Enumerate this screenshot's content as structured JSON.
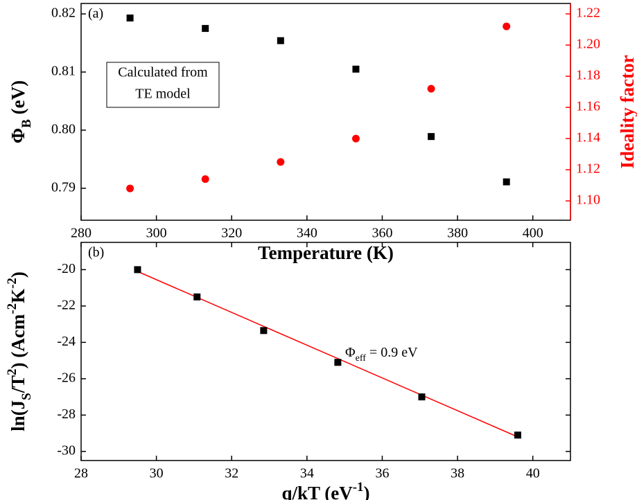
{
  "chart_data": [
    {
      "type": "scatter",
      "annotation": "(a)",
      "text_box": [
        "Calculated from",
        "TE model"
      ],
      "xlabel": "Temperature (K)",
      "ylabel": [
        {
          "text": "Φ"
        },
        {
          "text": "B",
          "baseline": "sub"
        },
        {
          "text": " (eV)"
        }
      ],
      "y2label": "Ideality factor",
      "y2_color": "#ff0000",
      "x": [
        293,
        313,
        333,
        353,
        373,
        393
      ],
      "series": [
        {
          "color": "#000000",
          "marker": "square",
          "values": [
            0.8193,
            0.8175,
            0.8154,
            0.8105,
            0.7989,
            0.7911
          ]
        },
        {
          "color": "#ff0000",
          "marker": "circle",
          "axis": "y2",
          "values": [
            1.108,
            1.114,
            1.125,
            1.14,
            1.172,
            1.212
          ]
        }
      ],
      "xlim": [
        280,
        410
      ],
      "xticks": [
        280,
        300,
        320,
        340,
        360,
        380,
        400
      ],
      "ylim": [
        0.7845,
        0.8218
      ],
      "yticks": [
        0.79,
        {
          "value": 0.8,
          "label": "0.80"
        },
        0.81,
        0.82
      ],
      "y2lim": [
        1.0876,
        1.2267
      ],
      "y2ticks": [
        {
          "value": 1.1,
          "label": "1.10"
        },
        1.12,
        1.14,
        1.16,
        1.18,
        {
          "value": 1.2,
          "label": "1.20"
        },
        1.22
      ]
    },
    {
      "type": "scatter",
      "annotation": "(b)",
      "note": [
        {
          "text": "Φ"
        },
        {
          "text": "eff",
          "baseline": "sub"
        },
        {
          "text": " = 0.9 eV"
        }
      ],
      "xlabel": [
        {
          "text": "q/kT (eV"
        },
        {
          "text": "-1",
          "baseline": "super"
        },
        {
          "text": ")"
        }
      ],
      "ylabel": [
        {
          "text": "ln(J"
        },
        {
          "text": "S",
          "baseline": "sub"
        },
        {
          "text": "/T"
        },
        {
          "text": "2",
          "baseline": "super"
        },
        {
          "text": ") (Acm"
        },
        {
          "text": "-2",
          "baseline": "super"
        },
        {
          "text": "K"
        },
        {
          "text": "-2",
          "baseline": "super"
        },
        {
          "text": ")"
        }
      ],
      "x": [
        29.5,
        31.08,
        32.85,
        34.82,
        37.05,
        39.6
      ],
      "series": [
        {
          "color": "#000000",
          "marker": "square",
          "values": [
            -20.0,
            -21.5,
            -23.35,
            -25.1,
            -27.0,
            -29.1
          ]
        }
      ],
      "fit": {
        "color": "#ff0000",
        "x": [
          29.5,
          39.6
        ],
        "values": [
          -20.1,
          -29.2
        ]
      },
      "xlim": [
        28,
        41
      ],
      "xticks": [
        28,
        30,
        32,
        34,
        36,
        38,
        40
      ],
      "ylim": [
        -30.5,
        -18.5
      ],
      "yticks": [
        -30,
        -28,
        -26,
        -24,
        -22,
        -20
      ]
    }
  ]
}
